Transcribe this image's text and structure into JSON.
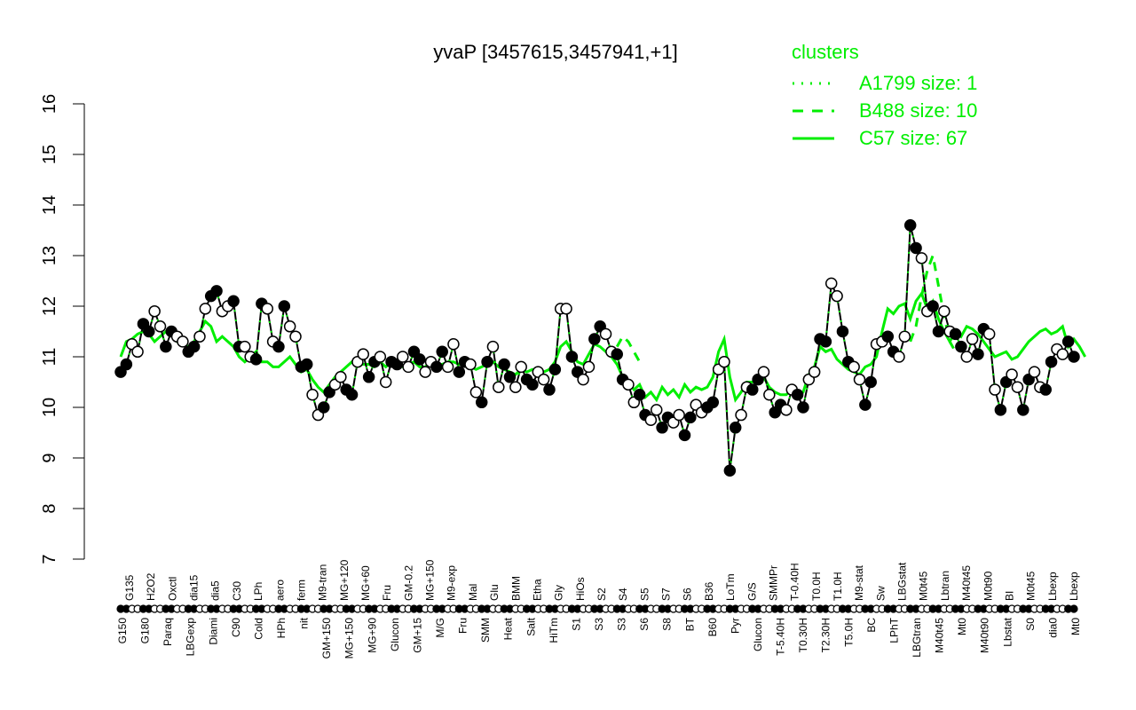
{
  "chart_data": {
    "type": "line",
    "title": "yvaP [3457615,3457941,+1]",
    "xlabel": "",
    "ylabel": "",
    "ylim": [
      7,
      16
    ],
    "yticks": [
      7,
      8,
      9,
      10,
      11,
      12,
      13,
      14,
      15,
      16
    ],
    "grid": false,
    "legend": {
      "title": "clusters",
      "position": "top-right",
      "color": "#00ee00",
      "entries": [
        {
          "label": "A1799 size: 1",
          "style": "dotted"
        },
        {
          "label": "B488 size: 10",
          "style": "dashed"
        },
        {
          "label": "C57 size: 67",
          "style": "solid"
        }
      ]
    },
    "categories_top_labels": [
      "G135",
      "H2O2",
      "Oxctl",
      "dia15",
      "dia5",
      "C30",
      "LPh",
      "aero",
      "ferm",
      "M9-tran",
      "MG+120",
      "MG+60",
      "Fru",
      "GM-0.2",
      "MG+150",
      "M9-exp",
      "Mal",
      "Glu",
      "BMM",
      "Etha",
      "Gly",
      "HiOs",
      "S2",
      "S4",
      "S5",
      "S7",
      "S6",
      "B36",
      "LoTm",
      "G/S",
      "SMMPr",
      "T-0.40H",
      "T0.0H",
      "T1.0H",
      "M9-stat",
      "Sw",
      "LBGstat",
      "M0t45",
      "Lbtran",
      "M40t45",
      "M0t90",
      "BI",
      "M0t45",
      "Lbexp",
      "Lbexp"
    ],
    "categories_bottom_labels": [
      "G150",
      "G180",
      "Paraq",
      "LBGexp",
      "Diami",
      "C90",
      "Cold",
      "HPh",
      "nit",
      "GM+150",
      "MG+150",
      "MG+90",
      "Glucon",
      "GM+15",
      "M/G",
      "Fru",
      "SMM",
      "Heat",
      "Salt",
      "HiTm",
      "S1",
      "S3",
      "S3",
      "S6",
      "S8",
      "BT",
      "B60",
      "Pyr",
      "Glucon",
      "T-5.40H",
      "T0.30H",
      "T2.30H",
      "T5.0H",
      "BC",
      "LPhT",
      "LBGtran",
      "M40t45",
      "Mt0",
      "M40t90",
      "Lbstat",
      "S0",
      "dia0",
      "Mt0"
    ],
    "series": [
      {
        "name": "expression (points)",
        "color": "#000000",
        "values": [
          10.7,
          10.85,
          11.25,
          11.1,
          11.65,
          11.5,
          11.9,
          11.6,
          11.2,
          11.5,
          11.4,
          11.3,
          11.1,
          11.2,
          11.4,
          11.95,
          12.2,
          12.3,
          11.9,
          12.0,
          12.1,
          11.2,
          11.2,
          11.0,
          10.95,
          12.05,
          11.95,
          11.3,
          11.2,
          12.0,
          11.6,
          11.4,
          10.8,
          10.85,
          10.25,
          9.85,
          10.0,
          10.3,
          10.45,
          10.6,
          10.35,
          10.25,
          10.9,
          11.05,
          10.6,
          10.9,
          11.0,
          10.5,
          10.9,
          10.85,
          11.0,
          10.8,
          11.1,
          10.95,
          10.7,
          10.9,
          10.8,
          11.1,
          10.8,
          11.25,
          10.7,
          10.9,
          10.85,
          10.3,
          10.1,
          10.9,
          11.2,
          10.4,
          10.85,
          10.6,
          10.4,
          10.8,
          10.55,
          10.45,
          10.7,
          10.55,
          10.35,
          10.75,
          11.95,
          11.95,
          11.0,
          10.7,
          10.55,
          10.8,
          11.35,
          11.6,
          11.45,
          11.1,
          11.05,
          10.55,
          10.45,
          10.1,
          10.25,
          9.85,
          9.75,
          9.95,
          9.6,
          9.8,
          9.7,
          9.85,
          9.45,
          9.8,
          10.05,
          9.9,
          10.0,
          10.1,
          10.75,
          10.9,
          8.75,
          9.6,
          9.85,
          10.4,
          10.35,
          10.55,
          10.7,
          10.25,
          9.9,
          10.05,
          9.95,
          10.35,
          10.25,
          10.0,
          10.55,
          10.7,
          11.35,
          11.3,
          12.45,
          12.2,
          11.5,
          10.9,
          10.8,
          10.55,
          10.05,
          10.5,
          11.25,
          11.3,
          11.4,
          11.1,
          11.0,
          11.4,
          13.6,
          13.15,
          12.95,
          11.9,
          12.0,
          11.5,
          11.9,
          11.5,
          11.45,
          11.2,
          11.0,
          11.35,
          11.05,
          11.55,
          11.45,
          10.35,
          9.95,
          10.5,
          10.65,
          10.4,
          9.95,
          10.55,
          10.7,
          10.4,
          10.35,
          10.9,
          11.15,
          11.05,
          11.3,
          11.0
        ]
      },
      {
        "name": "C57 size: 67",
        "style": "solid",
        "color": "#00ee00",
        "values": [
          11.0,
          11.3,
          11.35,
          11.45,
          11.5,
          11.45,
          11.3,
          11.4,
          11.5,
          11.45,
          11.3,
          11.25,
          11.2,
          11.3,
          11.5,
          11.7,
          11.6,
          11.3,
          11.4,
          11.3,
          11.2,
          11.0,
          10.9,
          11.0,
          11.1,
          10.9,
          10.9,
          10.8,
          10.8,
          10.9,
          11.0,
          10.85,
          10.7,
          10.75,
          10.55,
          10.4,
          10.3,
          10.45,
          10.6,
          10.7,
          10.8,
          10.9,
          10.95,
          10.85,
          10.85,
          10.8,
          10.9,
          10.8,
          10.9,
          10.85,
          10.8,
          10.85,
          10.9,
          10.8,
          10.8,
          10.9,
          10.85,
          10.85,
          10.9,
          10.9,
          10.85,
          10.85,
          10.8,
          10.75,
          10.8,
          10.85,
          10.9,
          10.8,
          10.75,
          10.7,
          10.65,
          10.75,
          10.7,
          10.75,
          10.7,
          10.7,
          10.75,
          10.9,
          11.2,
          11.3,
          11.1,
          10.9,
          10.85,
          11.05,
          11.25,
          11.2,
          11.1,
          11.0,
          10.85,
          10.6,
          10.5,
          10.35,
          10.45,
          10.2,
          10.3,
          10.15,
          10.4,
          10.25,
          10.35,
          10.2,
          10.45,
          10.3,
          10.4,
          10.35,
          10.4,
          10.6,
          11.1,
          11.35,
          10.6,
          10.15,
          10.3,
          10.5,
          10.5,
          10.55,
          10.6,
          10.4,
          10.3,
          10.25,
          10.25,
          10.35,
          10.3,
          10.3,
          10.65,
          10.8,
          11.2,
          11.1,
          11.15,
          10.95,
          10.85,
          10.75,
          10.7,
          10.65,
          10.8,
          10.85,
          11.0,
          11.5,
          11.95,
          11.85,
          12.0,
          12.05,
          11.75,
          12.1,
          12.25,
          11.95,
          12.1,
          11.75,
          11.5,
          11.3,
          11.5,
          11.4,
          11.6,
          11.55,
          11.45,
          11.3,
          11.15,
          11.0,
          11.05,
          11.1,
          10.95,
          11.0,
          11.15,
          11.3,
          11.4,
          11.5,
          11.55,
          11.45,
          11.5,
          11.6,
          11.2,
          11.35,
          11.2,
          11.0
        ]
      },
      {
        "name": "B488 size: 10",
        "style": "dashed",
        "color": "#00ee00",
        "segments": [
          {
            "from": 88,
            "to": 92,
            "values": [
              11.2,
              11.4,
              11.3,
              11.1,
              10.9
            ]
          },
          {
            "from": 140,
            "to": 148,
            "values": [
              11.3,
              11.6,
              12.2,
              12.7,
              13.0,
              12.4,
              11.8,
              11.3,
              11.1
            ]
          }
        ]
      }
    ],
    "annotations": []
  }
}
